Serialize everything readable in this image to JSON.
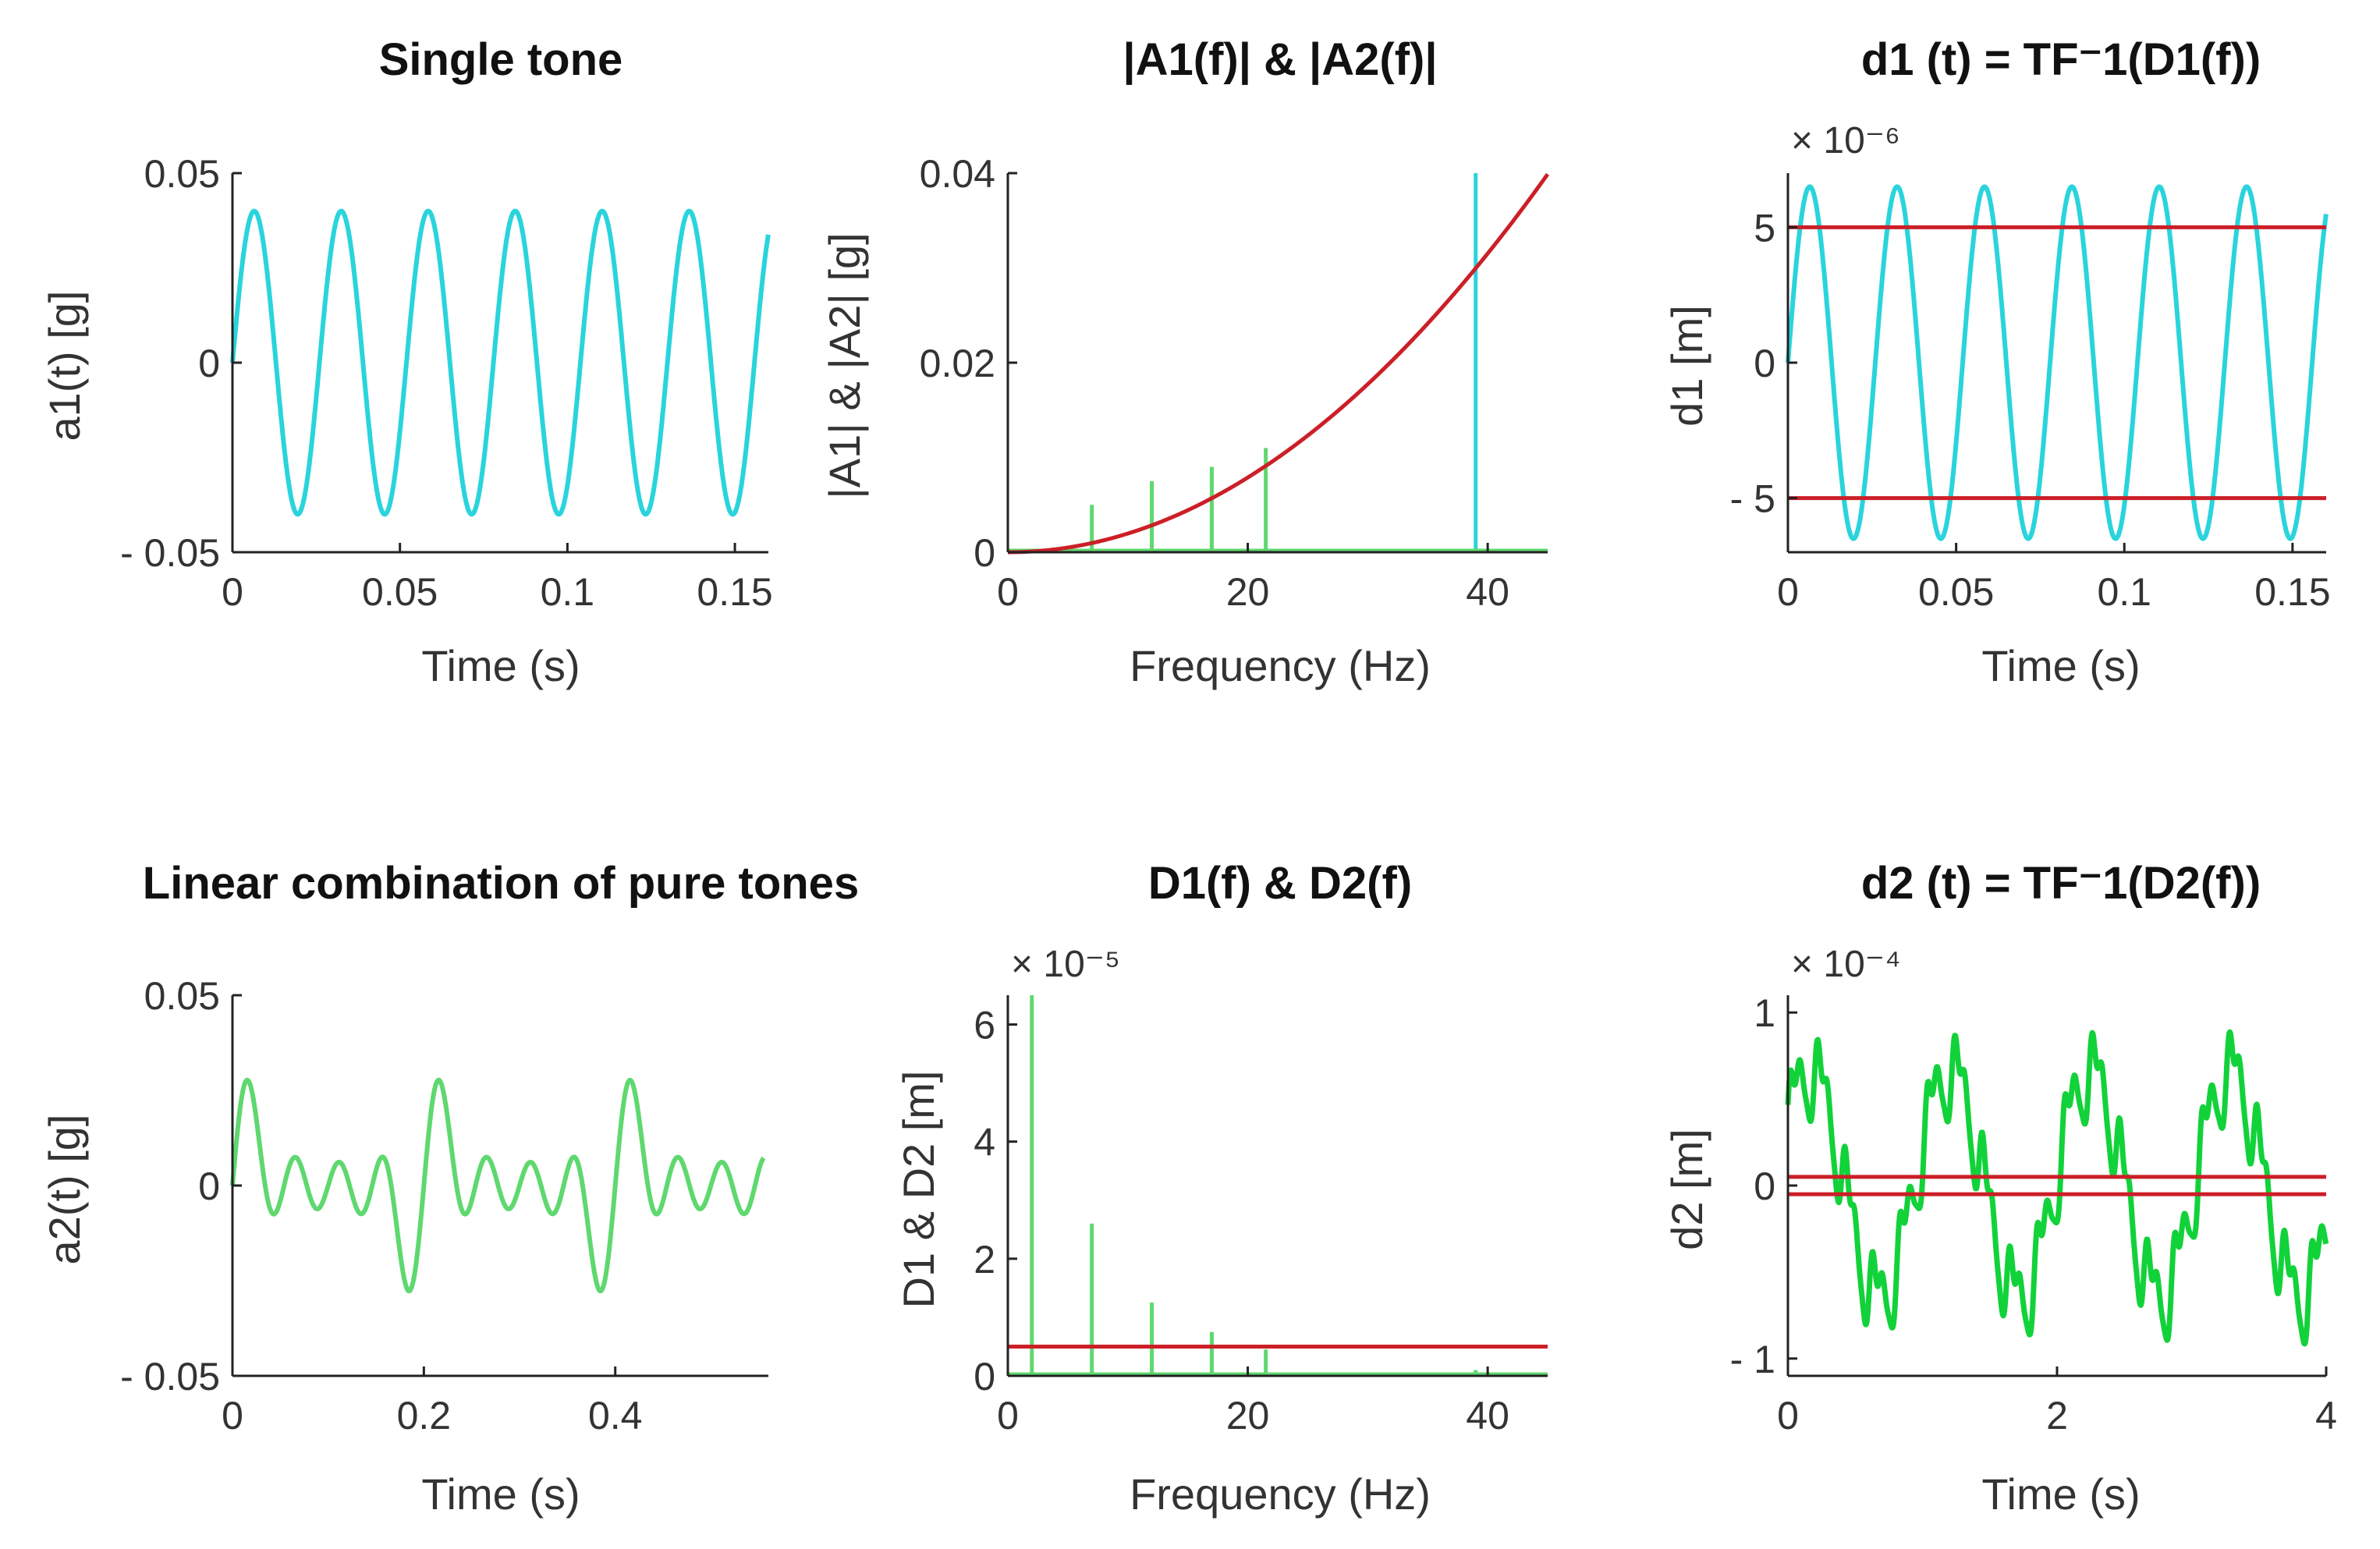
{
  "colors": {
    "cyan": "#2ad4dc",
    "light_green": "#5fd86f",
    "green": "#12d23a",
    "red": "#cc1f27",
    "axis": "#222222",
    "text": "#333333"
  },
  "chart_data": [
    {
      "id": "p1",
      "type": "line",
      "title": "Single tone",
      "xlabel": "Time (s)",
      "ylabel": "a1(t) [g]",
      "xlim": [
        0,
        0.16
      ],
      "ylim": [
        -0.05,
        0.05
      ],
      "xticks": [
        0,
        0.05,
        0.1,
        0.15
      ],
      "xtick_labels": [
        "0",
        "0.05",
        "0.1",
        "0.15"
      ],
      "yticks": [
        -0.05,
        0,
        0.05
      ],
      "ytick_labels": [
        "- 0.05",
        "0",
        "0.05"
      ],
      "series": [
        {
          "name": "a1",
          "color": "cyan",
          "kind": "sine",
          "amplitude": 0.04,
          "frequency_hz": 38.5,
          "phase": 0,
          "t_start": 0,
          "t_end": 0.16
        }
      ]
    },
    {
      "id": "p2",
      "type": "line",
      "title": "|A1(f)| & |A2(f)|",
      "xlabel": "Frequency (Hz)",
      "ylabel": "|A1| & |A2| [g]",
      "xlim": [
        0,
        45
      ],
      "ylim": [
        0,
        0.04
      ],
      "xticks": [
        0,
        20,
        40
      ],
      "xtick_labels": [
        "0",
        "20",
        "40"
      ],
      "yticks": [
        0,
        0.02,
        0.04
      ],
      "ytick_labels": [
        "0",
        "0.02",
        "0.04"
      ],
      "stems": [
        {
          "name": "A1",
          "color": "cyan",
          "x": [
            39
          ],
          "y": [
            0.04
          ]
        },
        {
          "name": "A2",
          "color": "light_green",
          "x": [
            7,
            12,
            17,
            21.5
          ],
          "y": [
            0.005,
            0.0075,
            0.009,
            0.011
          ]
        }
      ],
      "series": [
        {
          "name": "threshold",
          "color": "red",
          "kind": "quadratic",
          "coef": 1.97e-05,
          "x_start": 0,
          "x_end": 45
        }
      ]
    },
    {
      "id": "p3",
      "type": "line",
      "title": "d1 (t) = TF⁻1(D1(f))",
      "xlabel": "Time (s)",
      "ylabel": "d1 [m]",
      "exponent_label": "× 10⁻⁶",
      "xlim": [
        0,
        0.16
      ],
      "ylim": [
        -7,
        7
      ],
      "xticks": [
        0,
        0.05,
        0.1,
        0.15
      ],
      "xtick_labels": [
        "0",
        "0.05",
        "0.1",
        "0.15"
      ],
      "yticks": [
        -5,
        0,
        5
      ],
      "ytick_labels": [
        "- 5",
        "0",
        "5"
      ],
      "series": [
        {
          "name": "d1",
          "color": "cyan",
          "kind": "sine",
          "amplitude": 6.5,
          "frequency_hz": 38.5,
          "phase": 0,
          "t_start": 0,
          "t_end": 0.16
        }
      ],
      "hlines": [
        {
          "y": 5,
          "color": "red"
        },
        {
          "y": -5,
          "color": "red"
        }
      ]
    },
    {
      "id": "p4",
      "type": "line",
      "title": "Linear combination of pure tones",
      "xlabel": "Time (s)",
      "ylabel": "a2(t) [g]",
      "xlim": [
        0,
        0.56
      ],
      "ylim": [
        -0.05,
        0.05
      ],
      "xticks": [
        0,
        0.2,
        0.4
      ],
      "xtick_labels": [
        "0",
        "0.2",
        "0.4"
      ],
      "yticks": [
        -0.05,
        0,
        0.05
      ],
      "ytick_labels": [
        "- 0.05",
        "0",
        "0.05"
      ],
      "series": [
        {
          "name": "a2",
          "color": "light_green",
          "kind": "tone_sum",
          "t_start": 0,
          "t_end": 0.555,
          "components": [
            {
              "amplitude": 0.005,
              "frequency_hz": 5,
              "phase": 0
            },
            {
              "amplitude": 0.0075,
              "frequency_hz": 10,
              "phase": 0
            },
            {
              "amplitude": 0.009,
              "frequency_hz": 15,
              "phase": 0
            },
            {
              "amplitude": 0.011,
              "frequency_hz": 20,
              "phase": 0
            }
          ]
        }
      ]
    },
    {
      "id": "p5",
      "type": "bar",
      "title": "D1(f) & D2(f)",
      "xlabel": "Frequency (Hz)",
      "ylabel": "D1 & D2 [m]",
      "exponent_label": "× 10⁻⁵",
      "xlim": [
        0,
        45
      ],
      "ylim": [
        0,
        6.5
      ],
      "xticks": [
        0,
        20,
        40
      ],
      "xtick_labels": [
        "0",
        "20",
        "40"
      ],
      "yticks": [
        0,
        2,
        4,
        6
      ],
      "ytick_labels": [
        "0",
        "2",
        "4",
        "6"
      ],
      "stems": [
        {
          "name": "D2",
          "color": "light_green",
          "x": [
            2,
            7,
            12,
            17,
            21.5
          ],
          "y": [
            6.5,
            2.6,
            1.25,
            0.75,
            0.45
          ]
        },
        {
          "name": "D1",
          "color": "light_green",
          "x": [
            39
          ],
          "y": [
            0.1
          ]
        }
      ],
      "hlines": [
        {
          "y": 0.5,
          "color": "red"
        }
      ]
    },
    {
      "id": "p6",
      "type": "line",
      "title": "d2 (t) = TF⁻1(D2(f))",
      "xlabel": "Time (s)",
      "ylabel": "d2 [m]",
      "exponent_label": "× 10⁻⁴",
      "xlim": [
        0,
        4
      ],
      "ylim": [
        -1.1,
        1.1
      ],
      "xticks": [
        0,
        2,
        4
      ],
      "xtick_labels": [
        "0",
        "2",
        "4"
      ],
      "yticks": [
        -1,
        0,
        1
      ],
      "ytick_labels": [
        "- 1",
        "0",
        "1"
      ],
      "series": [
        {
          "name": "d2",
          "color": "green",
          "kind": "tone_sum",
          "t_start": 0,
          "t_end": 4,
          "components": [
            {
              "amplitude": 0.65,
              "frequency_hz": 0.96,
              "phase": 0.6
            },
            {
              "amplitude": 0.2,
              "frequency_hz": 4.9,
              "phase": 0
            },
            {
              "amplitude": 0.1,
              "frequency_hz": 9.8,
              "phase": 1.0
            },
            {
              "amplitude": 0.05,
              "frequency_hz": 14.7,
              "phase": 0.3
            }
          ]
        }
      ],
      "hlines": [
        {
          "y": 0.05,
          "color": "red"
        },
        {
          "y": -0.05,
          "color": "red"
        }
      ]
    }
  ]
}
